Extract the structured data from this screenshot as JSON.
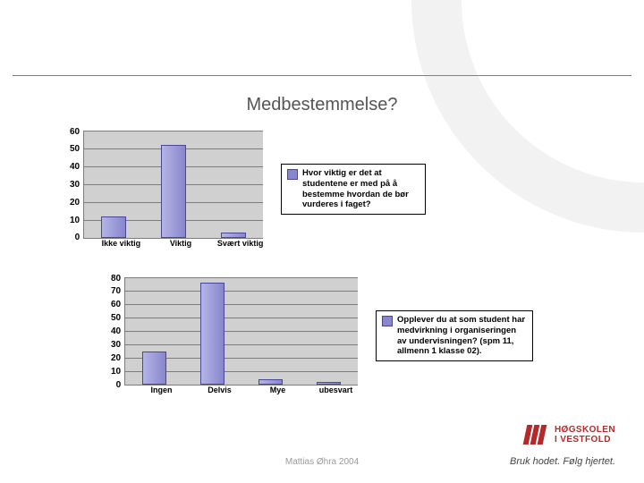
{
  "title": "Medbestemmelse?",
  "title_color": "#555555",
  "title_fontsize": 20,
  "footer_attribution": "Mattias Øhra 2004",
  "watermark_arc_color": "#f2f2f2",
  "logo": {
    "line1": "HØGSKOLEN",
    "line2": "I VESTFOLD",
    "color": "#b42a2a"
  },
  "tagline": "Bruk hodet. Følg hjertet.",
  "chart1": {
    "type": "bar",
    "categories": [
      "Ikke viktig",
      "Viktig",
      "Svært viktig"
    ],
    "values": [
      12,
      52,
      3
    ],
    "ylim": [
      0,
      60
    ],
    "ytick_step": 10,
    "yticks": [
      "0",
      "10",
      "20",
      "30",
      "40",
      "50",
      "60"
    ],
    "bar_color": "#8886cc",
    "bar_border": "#4a4794",
    "plot_bg": "#d0d0d0",
    "grid_color": "#7c7c7c",
    "label_fontsize": 9,
    "legend": "Hvor viktig er det at studentene er med på å bestemme hvordan de bør vurderes i faget?"
  },
  "chart2": {
    "type": "bar",
    "categories": [
      "Ingen",
      "Delvis",
      "Mye",
      "ubesvart"
    ],
    "values": [
      25,
      76,
      4,
      2
    ],
    "ylim": [
      0,
      80
    ],
    "ytick_step": 10,
    "yticks": [
      "0",
      "10",
      "20",
      "30",
      "40",
      "50",
      "60",
      "70",
      "80"
    ],
    "bar_color": "#8886cc",
    "bar_border": "#4a4794",
    "plot_bg": "#d0d0d0",
    "grid_color": "#7c7c7c",
    "label_fontsize": 9,
    "legend": "Opplever du at som student har medvirkning i organiseringen av undervisningen? (spm 11, allmenn 1 klasse 02)."
  }
}
